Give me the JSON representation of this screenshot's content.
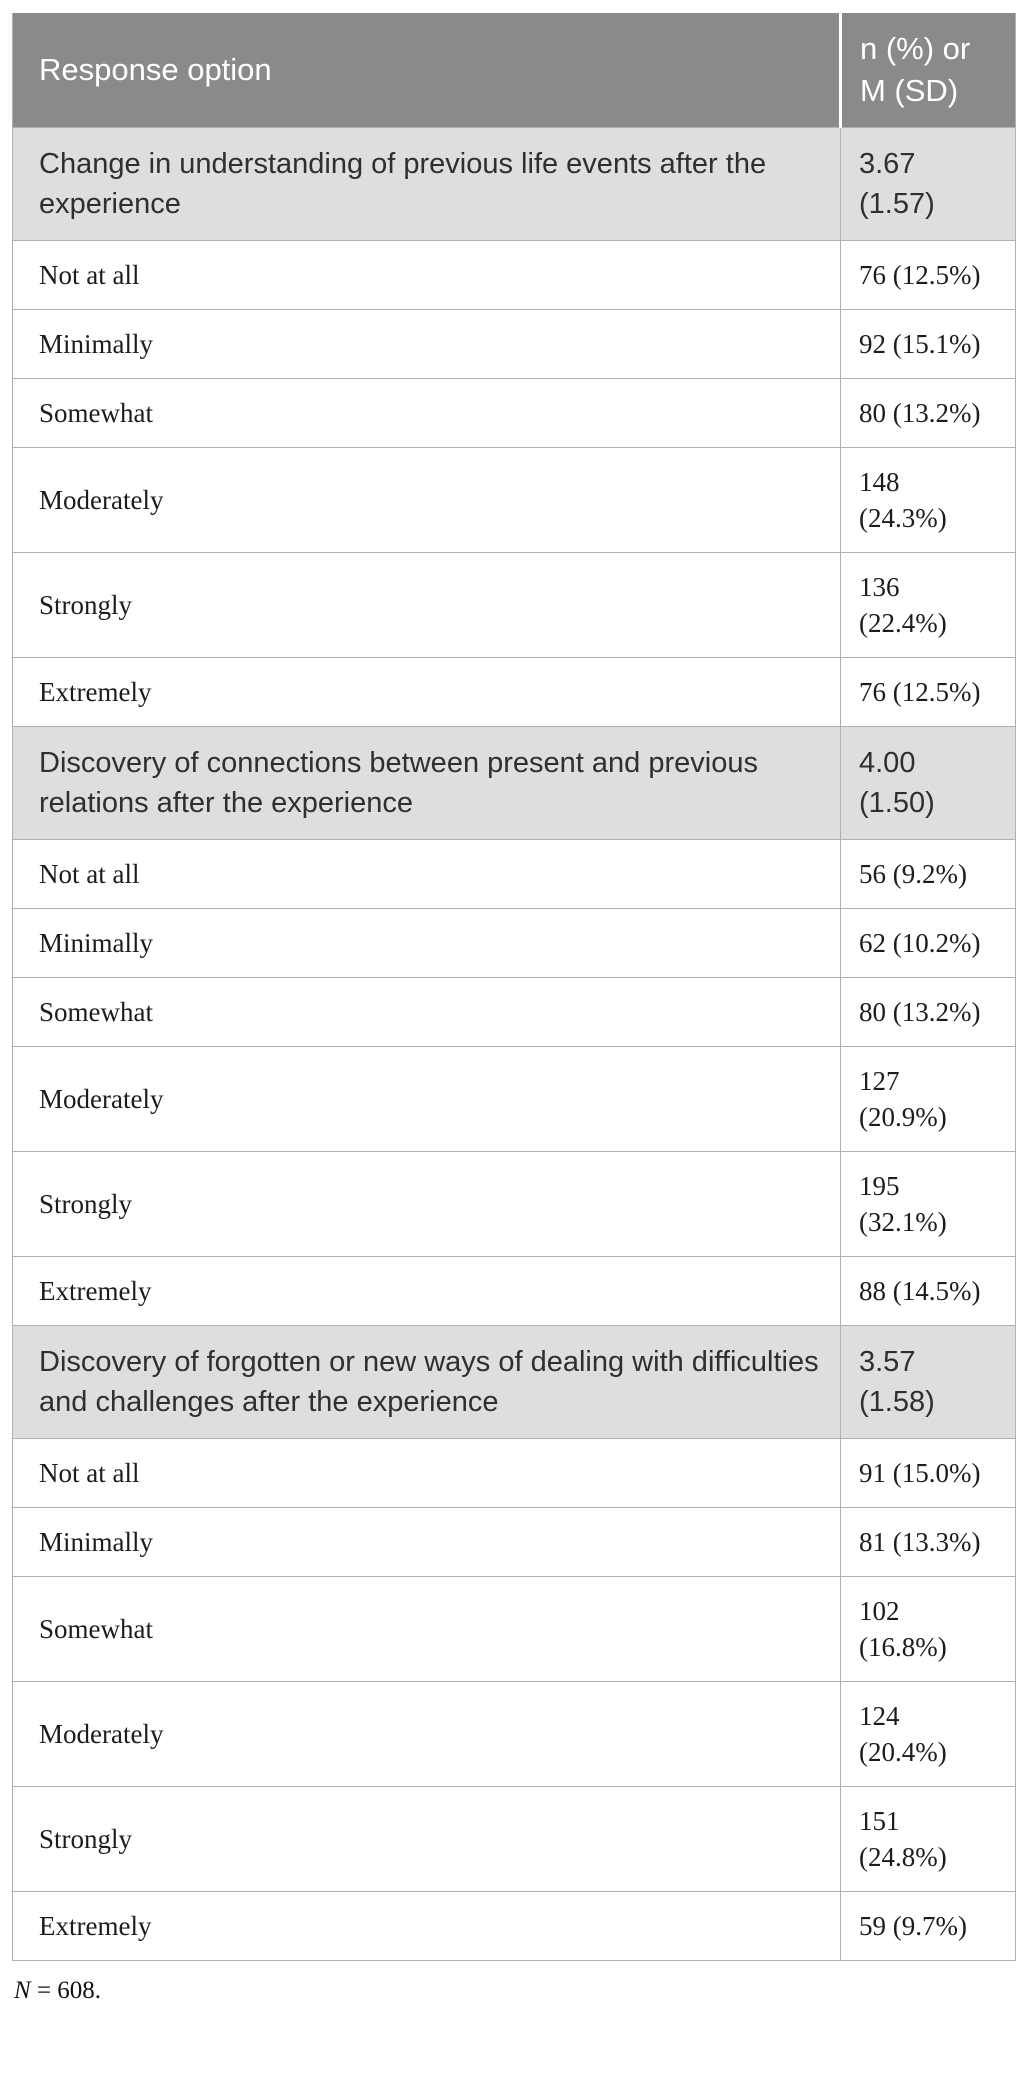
{
  "colors": {
    "header_bg": "#8a8a8a",
    "section_bg": "#dedede",
    "border": "#b0b0b0",
    "header_text": "#ffffff",
    "section_text": "#2f2f2f",
    "body_text": "#1c1c1c"
  },
  "table": {
    "header": {
      "col1": "Response option",
      "col2": "n (%) or\nM (SD)"
    },
    "rows": [
      {
        "type": "section",
        "label": "Change in understanding of previous life events after the experience",
        "value": "3.67\n(1.57)"
      },
      {
        "type": "item",
        "label": "Not at all",
        "value": "76 (12.5%)"
      },
      {
        "type": "item",
        "label": "Minimally",
        "value": "92 (15.1%)"
      },
      {
        "type": "item",
        "label": "Somewhat",
        "value": "80 (13.2%)"
      },
      {
        "type": "item",
        "label": "Moderately",
        "value": "148\n(24.3%)"
      },
      {
        "type": "item",
        "label": "Strongly",
        "value": "136\n(22.4%)"
      },
      {
        "type": "item",
        "label": "Extremely",
        "value": "76 (12.5%)"
      },
      {
        "type": "section",
        "label": "Discovery of connections between present and previous relations after the experience",
        "value": "4.00\n(1.50)"
      },
      {
        "type": "item",
        "label": "Not at all",
        "value": "56 (9.2%)"
      },
      {
        "type": "item",
        "label": "Minimally",
        "value": "62 (10.2%)"
      },
      {
        "type": "item",
        "label": "Somewhat",
        "value": "80 (13.2%)"
      },
      {
        "type": "item",
        "label": "Moderately",
        "value": "127\n(20.9%)"
      },
      {
        "type": "item",
        "label": "Strongly",
        "value": "195\n(32.1%)"
      },
      {
        "type": "item",
        "label": "Extremely",
        "value": "88 (14.5%)"
      },
      {
        "type": "section",
        "label": "Discovery of forgotten or new ways of dealing with difficulties and challenges after the experience",
        "value": "3.57\n(1.58)"
      },
      {
        "type": "item",
        "label": "Not at all",
        "value": "91 (15.0%)"
      },
      {
        "type": "item",
        "label": "Minimally",
        "value": "81 (13.3%)"
      },
      {
        "type": "item",
        "label": "Somewhat",
        "value": "102\n(16.8%)"
      },
      {
        "type": "item",
        "label": "Moderately",
        "value": "124\n(20.4%)"
      },
      {
        "type": "item",
        "label": "Strongly",
        "value": "151\n(24.8%)"
      },
      {
        "type": "item",
        "label": "Extremely",
        "value": "59 (9.7%)"
      }
    ],
    "footnote": {
      "symbol": "N",
      "rest": " = 608."
    }
  }
}
